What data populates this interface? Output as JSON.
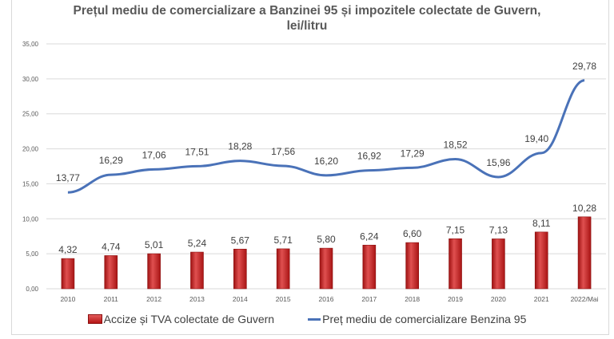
{
  "chart_data": {
    "type": "bar+line",
    "title_line1": "Prețul mediu de comercializare a Banzinei 95 și impozitele colectate de Guvern,",
    "title_line2": "lei/litru",
    "categories": [
      "2010",
      "2011",
      "2012",
      "2013",
      "2014",
      "2015",
      "2016",
      "2017",
      "2018",
      "2019",
      "2020",
      "2021",
      "2022/Mai"
    ],
    "series": [
      {
        "name": "Accize și TVA colectate de Guvern",
        "type": "bar",
        "color": "#c0392b",
        "values": [
          4.32,
          4.74,
          5.01,
          5.24,
          5.67,
          5.71,
          5.8,
          6.24,
          6.6,
          7.15,
          7.13,
          8.11,
          10.28
        ],
        "labels": [
          "4,32",
          "4,74",
          "5,01",
          "5,24",
          "5,67",
          "5,71",
          "5,80",
          "6,24",
          "6,60",
          "7,15",
          "7,13",
          "8,11",
          "10,28"
        ]
      },
      {
        "name": "Preț mediu de comercializare Benzina 95",
        "type": "line",
        "color": "#4a72b8",
        "values": [
          13.77,
          16.29,
          17.06,
          17.51,
          18.28,
          17.56,
          16.2,
          16.92,
          17.29,
          18.52,
          15.96,
          19.4,
          29.78
        ],
        "labels": [
          "13,77",
          "16,29",
          "17,06",
          "17,51",
          "18,28",
          "17,56",
          "16,20",
          "16,92",
          "17,29",
          "18,52",
          "15,96",
          "19,40",
          "29,78"
        ]
      }
    ],
    "yticks": [
      "0,00",
      "5,00",
      "10,00",
      "15,00",
      "20,00",
      "25,00",
      "30,00",
      "35,00"
    ],
    "ylim": [
      0,
      35
    ],
    "grid": true,
    "legend_position": "bottom"
  }
}
